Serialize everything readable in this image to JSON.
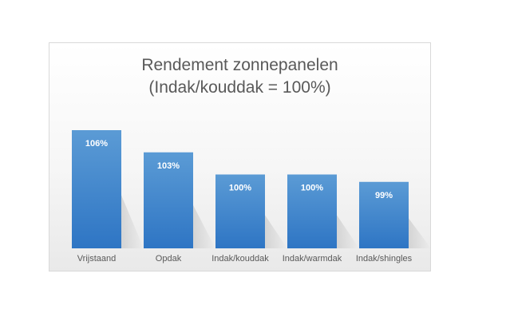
{
  "chart_data": {
    "type": "bar",
    "title_line1": "Rendement zonnepanelen",
    "title_line2": "(Indak/kouddak = 100%)",
    "categories": [
      "Vrijstaand",
      "Opdak",
      "Indak/kouddak",
      "Indak/warmdak",
      "Indak/shingles"
    ],
    "values": [
      106,
      103,
      100,
      100,
      99
    ],
    "data_labels": [
      "106%",
      "103%",
      "100%",
      "100%",
      "99%"
    ],
    "xlabel": "",
    "ylabel": "",
    "grid": false,
    "legend": "none",
    "colors": {
      "bar_top": "#5b9bd5",
      "bar_bottom": "#2e75c4",
      "label": "#ffffff",
      "category_text": "#595959"
    }
  }
}
